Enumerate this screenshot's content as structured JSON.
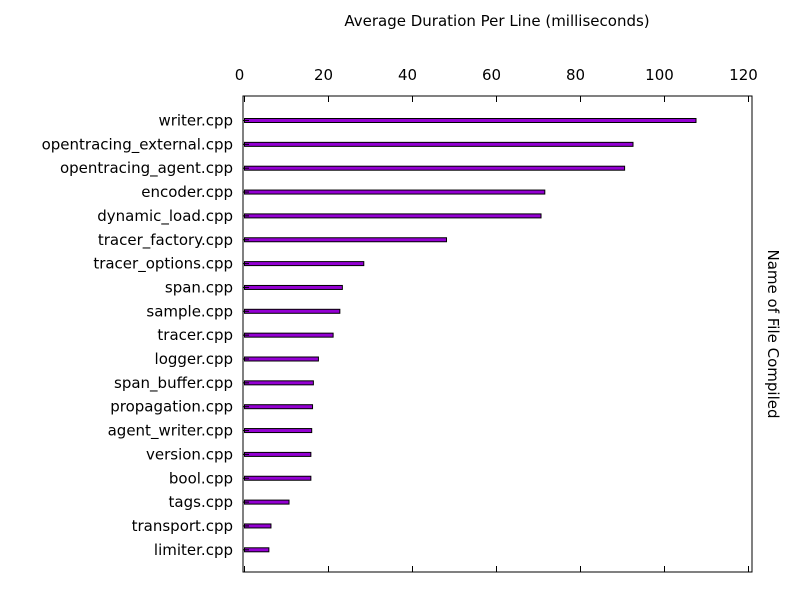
{
  "chart_data": {
    "type": "bar",
    "orientation": "horizontal",
    "title": "Average Duration Per Line (milliseconds)",
    "xlabel": "",
    "ylabel": "Name of File Compiled",
    "xlim": [
      0,
      120
    ],
    "x_ticks": [
      0,
      20,
      40,
      60,
      80,
      100,
      120
    ],
    "x_axis_position": "top",
    "y_label_side": "right",
    "grid": false,
    "legend": "none",
    "bar_color": "#9400d3",
    "bar_edge_color": "#000000",
    "categories": [
      "writer.cpp",
      "opentracing_external.cpp",
      "opentracing_agent.cpp",
      "encoder.cpp",
      "dynamic_load.cpp",
      "tracer_factory.cpp",
      "tracer_options.cpp",
      "span.cpp",
      "sample.cpp",
      "tracer.cpp",
      "logger.cpp",
      "span_buffer.cpp",
      "propagation.cpp",
      "agent_writer.cpp",
      "version.cpp",
      "bool.cpp",
      "tags.cpp",
      "transport.cpp",
      "limiter.cpp"
    ],
    "values": [
      107.5,
      92.5,
      90.5,
      71.5,
      70.6,
      48.1,
      28.4,
      23.3,
      22.7,
      21.1,
      17.6,
      16.4,
      16.2,
      16.0,
      15.8,
      15.8,
      10.6,
      6.3,
      5.8
    ]
  }
}
